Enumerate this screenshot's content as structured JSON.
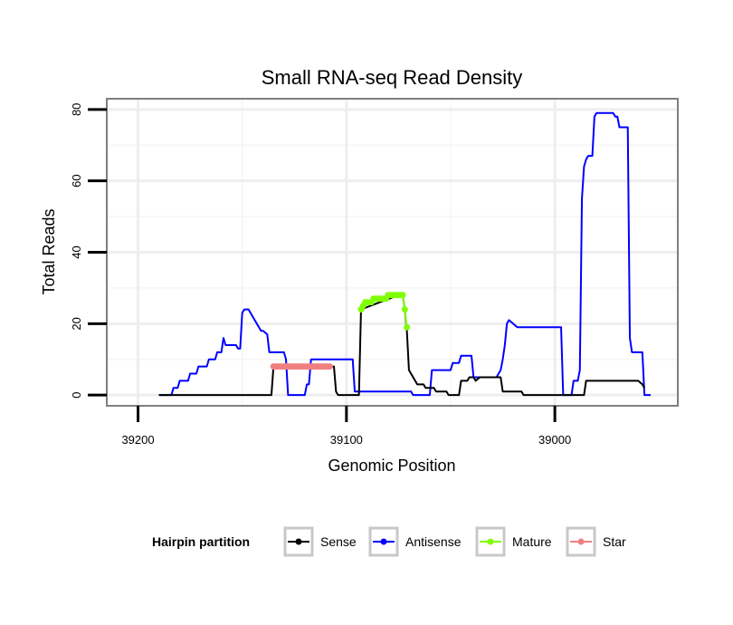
{
  "chart_data": {
    "type": "line",
    "title": "Small RNA-seq Read Density",
    "xlabel": "Genomic Position",
    "ylabel": "Total Reads",
    "x_reversed": true,
    "xlim": [
      39215,
      38941
    ],
    "ylim": [
      -3,
      83
    ],
    "x_ticks": [
      39200,
      39100,
      39000
    ],
    "x_tick_labels": [
      "39200",
      "39100",
      "39000"
    ],
    "y_ticks": [
      0,
      20,
      40,
      60,
      80
    ],
    "y_tick_labels": [
      "0",
      "20",
      "40",
      "60",
      "80"
    ],
    "grid": true,
    "legend": {
      "title": "Hairpin partition",
      "position": "bottom",
      "entries": [
        {
          "name": "Sense",
          "color": "#000000"
        },
        {
          "name": "Antisense",
          "color": "#0000ff"
        },
        {
          "name": "Mature",
          "color": "#7fff00"
        },
        {
          "name": "Star",
          "color": "#f08080"
        }
      ]
    },
    "series": [
      {
        "name": "Antisense",
        "color": "#0000ff",
        "points": [
          [
            39190,
            0
          ],
          [
            39184,
            0
          ],
          [
            39183,
            2
          ],
          [
            39181,
            2
          ],
          [
            39180,
            4
          ],
          [
            39176,
            4
          ],
          [
            39175,
            6
          ],
          [
            39172,
            6
          ],
          [
            39171,
            8
          ],
          [
            39167,
            8
          ],
          [
            39166,
            10
          ],
          [
            39163,
            10
          ],
          [
            39162,
            12
          ],
          [
            39160,
            12
          ],
          [
            39159,
            16
          ],
          [
            39158,
            14
          ],
          [
            39153,
            14
          ],
          [
            39152,
            13
          ],
          [
            39151,
            13
          ],
          [
            39150,
            23
          ],
          [
            39149,
            24
          ],
          [
            39147,
            24
          ],
          [
            39146,
            23
          ],
          [
            39145,
            22
          ],
          [
            39144,
            21
          ],
          [
            39143,
            20
          ],
          [
            39142,
            19
          ],
          [
            39141,
            18
          ],
          [
            39140,
            18
          ],
          [
            39138,
            17
          ],
          [
            39137,
            12
          ],
          [
            39130,
            12
          ],
          [
            39129,
            10
          ],
          [
            39128,
            0
          ],
          [
            39120,
            0
          ],
          [
            39119,
            3
          ],
          [
            39118,
            3
          ],
          [
            39117,
            10
          ],
          [
            39097,
            10
          ],
          [
            39096,
            1
          ],
          [
            39069,
            1
          ],
          [
            39068,
            0
          ],
          [
            39060,
            0
          ],
          [
            39059,
            7
          ],
          [
            39050,
            7
          ],
          [
            39049,
            9
          ],
          [
            39046,
            9
          ],
          [
            39045,
            11
          ],
          [
            39040,
            11
          ],
          [
            39039,
            5
          ],
          [
            39028,
            5
          ],
          [
            39027,
            6
          ],
          [
            39026,
            7
          ],
          [
            39025,
            10
          ],
          [
            39024,
            14
          ],
          [
            39023,
            20
          ],
          [
            39022,
            21
          ],
          [
            39020,
            20
          ],
          [
            39018,
            19
          ],
          [
            38997,
            19
          ],
          [
            38996,
            0
          ],
          [
            38992,
            0
          ],
          [
            38991,
            4
          ],
          [
            38989,
            4
          ],
          [
            38988,
            7
          ],
          [
            38987,
            55
          ],
          [
            38986,
            64
          ],
          [
            38985,
            66
          ],
          [
            38984,
            67
          ],
          [
            38982,
            67
          ],
          [
            38981,
            78
          ],
          [
            38980,
            79
          ],
          [
            38972,
            79
          ],
          [
            38971,
            78
          ],
          [
            38970,
            78
          ],
          [
            38969,
            75
          ],
          [
            38965,
            75
          ],
          [
            38964,
            16
          ],
          [
            38963,
            12
          ],
          [
            38958,
            12
          ],
          [
            38957,
            0
          ],
          [
            38954,
            0
          ]
        ]
      },
      {
        "name": "Sense",
        "color": "#000000",
        "points": [
          [
            39190,
            0
          ],
          [
            39136,
            0
          ],
          [
            39135,
            8
          ],
          [
            39106,
            8
          ],
          [
            39105,
            1
          ],
          [
            39104,
            0
          ],
          [
            39094,
            0
          ],
          [
            39093,
            24
          ],
          [
            39075,
            28
          ],
          [
            39073,
            28
          ],
          [
            39072,
            24
          ],
          [
            39071,
            18
          ],
          [
            39070,
            7
          ],
          [
            39068,
            5
          ],
          [
            39066,
            3
          ],
          [
            39063,
            3
          ],
          [
            39062,
            2
          ],
          [
            39058,
            2
          ],
          [
            39057,
            1
          ],
          [
            39052,
            1
          ],
          [
            39051,
            0
          ],
          [
            39046,
            0
          ],
          [
            39045,
            4
          ],
          [
            39042,
            4
          ],
          [
            39041,
            5
          ],
          [
            39039,
            5
          ],
          [
            39038,
            4
          ],
          [
            39036,
            5
          ],
          [
            39026,
            5
          ],
          [
            39025,
            1
          ],
          [
            39016,
            1
          ],
          [
            39015,
            0
          ],
          [
            38986,
            0
          ],
          [
            38985,
            4
          ],
          [
            38963,
            4
          ],
          [
            38960,
            4
          ],
          [
            38958,
            3
          ],
          [
            38957,
            2
          ]
        ]
      },
      {
        "name": "Mature",
        "color": "#7fff00",
        "points": [
          [
            39093,
            24
          ],
          [
            39092,
            25
          ],
          [
            39091,
            26
          ],
          [
            39090,
            26
          ],
          [
            39088,
            26
          ],
          [
            39087,
            27
          ],
          [
            39086,
            27
          ],
          [
            39085,
            27
          ],
          [
            39084,
            27
          ],
          [
            39083,
            27
          ],
          [
            39082,
            27
          ],
          [
            39081,
            27
          ],
          [
            39080,
            28
          ],
          [
            39079,
            28
          ],
          [
            39078,
            28
          ],
          [
            39077,
            28
          ],
          [
            39076,
            28
          ],
          [
            39075,
            28
          ],
          [
            39074,
            28
          ],
          [
            39073,
            28
          ],
          [
            39072,
            24
          ],
          [
            39071,
            19
          ]
        ]
      },
      {
        "name": "Star",
        "color": "#f08080",
        "points": [
          [
            39135,
            8
          ],
          [
            39134,
            8
          ],
          [
            39133,
            8
          ],
          [
            39132,
            8
          ],
          [
            39131,
            8
          ],
          [
            39130,
            8
          ],
          [
            39129,
            8
          ],
          [
            39128,
            8
          ],
          [
            39127,
            8
          ],
          [
            39126,
            8
          ],
          [
            39125,
            8
          ],
          [
            39124,
            8
          ],
          [
            39123,
            8
          ],
          [
            39122,
            8
          ],
          [
            39121,
            8
          ],
          [
            39120,
            8
          ],
          [
            39119,
            8
          ],
          [
            39118,
            8
          ],
          [
            39117,
            8
          ],
          [
            39116,
            8
          ],
          [
            39115,
            8
          ],
          [
            39114,
            8
          ],
          [
            39113,
            8
          ],
          [
            39112,
            8
          ],
          [
            39111,
            8
          ],
          [
            39110,
            8
          ],
          [
            39109,
            8
          ],
          [
            39108,
            8
          ]
        ]
      }
    ]
  }
}
